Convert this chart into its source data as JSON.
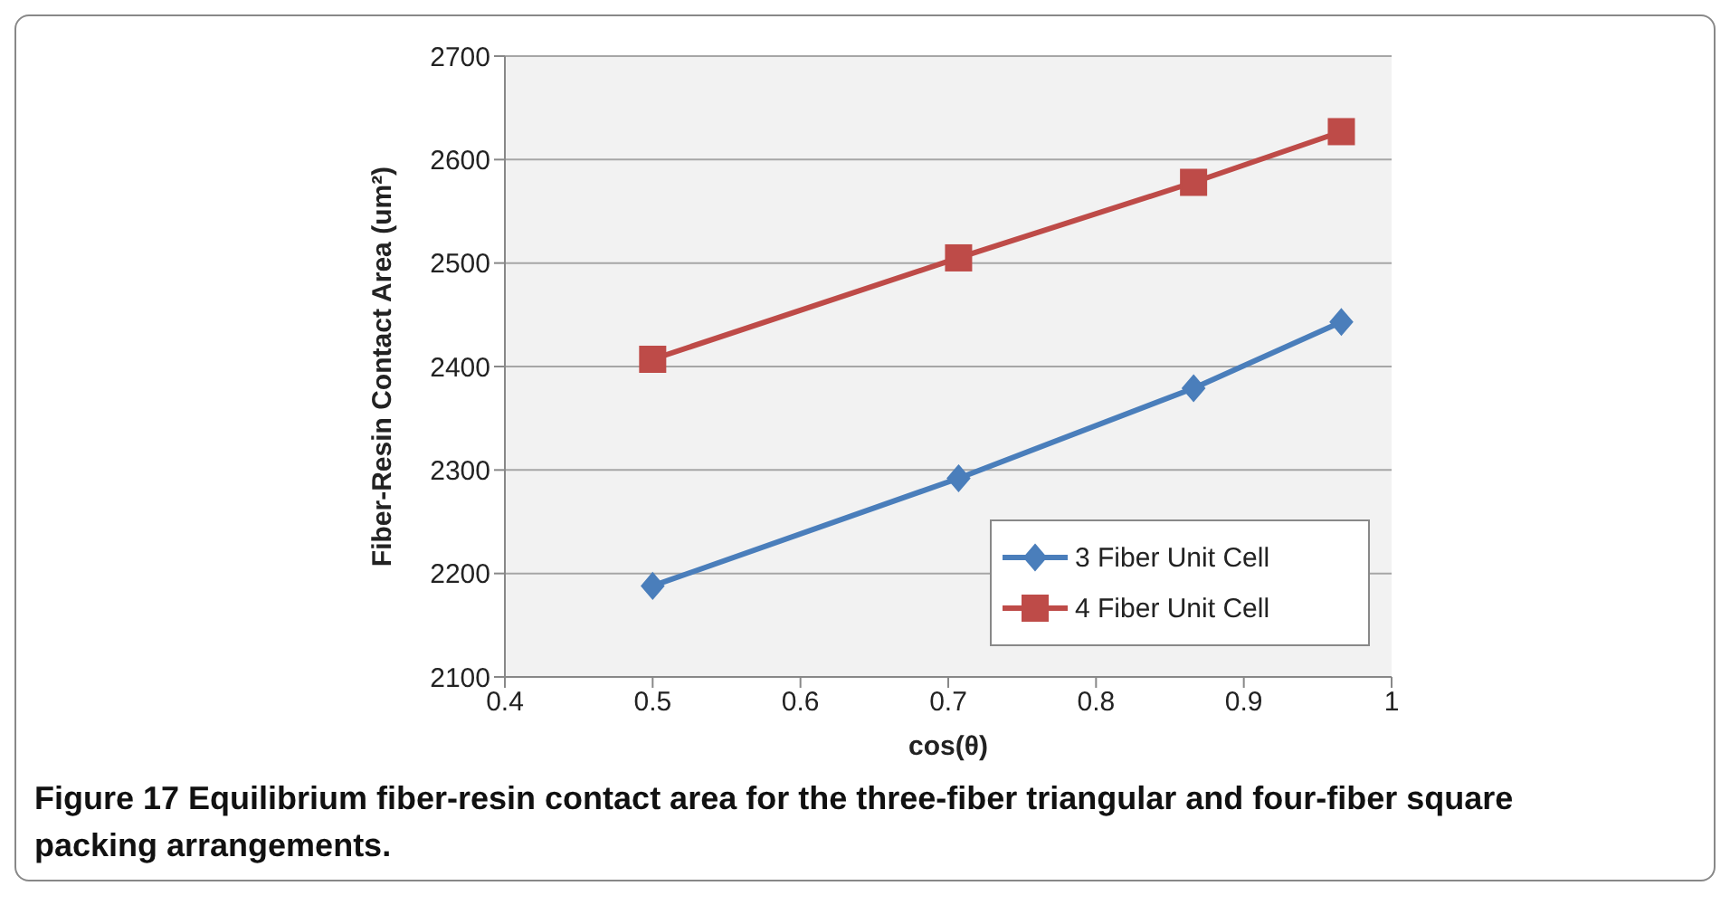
{
  "chart_data": {
    "type": "line",
    "xlabel": "cos(θ)",
    "ylabel": "Fiber-Resin Contact Area (um²)",
    "annotations": [
      "Figure 17 Equilibrium fiber-resin contact area for the three-fiber triangular and four-fiber square packing arrangements."
    ],
    "x": [
      0.5,
      0.707,
      0.866,
      0.966
    ],
    "series": [
      {
        "name": "3 Fiber Unit Cell",
        "color": "#4a7ebb",
        "marker": "diamond",
        "values": [
          2188,
          2292,
          2379,
          2443
        ]
      },
      {
        "name": "4 Fiber Unit Cell",
        "color": "#be4b48",
        "marker": "square",
        "values": [
          2407,
          2505,
          2578,
          2627
        ]
      }
    ],
    "xlim": [
      0.4,
      1
    ],
    "xticks": [
      0.4,
      0.5,
      0.6,
      0.7,
      0.8,
      0.9,
      1
    ],
    "ylim": [
      2100,
      2700
    ],
    "yticks": [
      2100,
      2200,
      2300,
      2400,
      2500,
      2600,
      2700
    ],
    "grid": "y",
    "legend": "bottom right"
  }
}
